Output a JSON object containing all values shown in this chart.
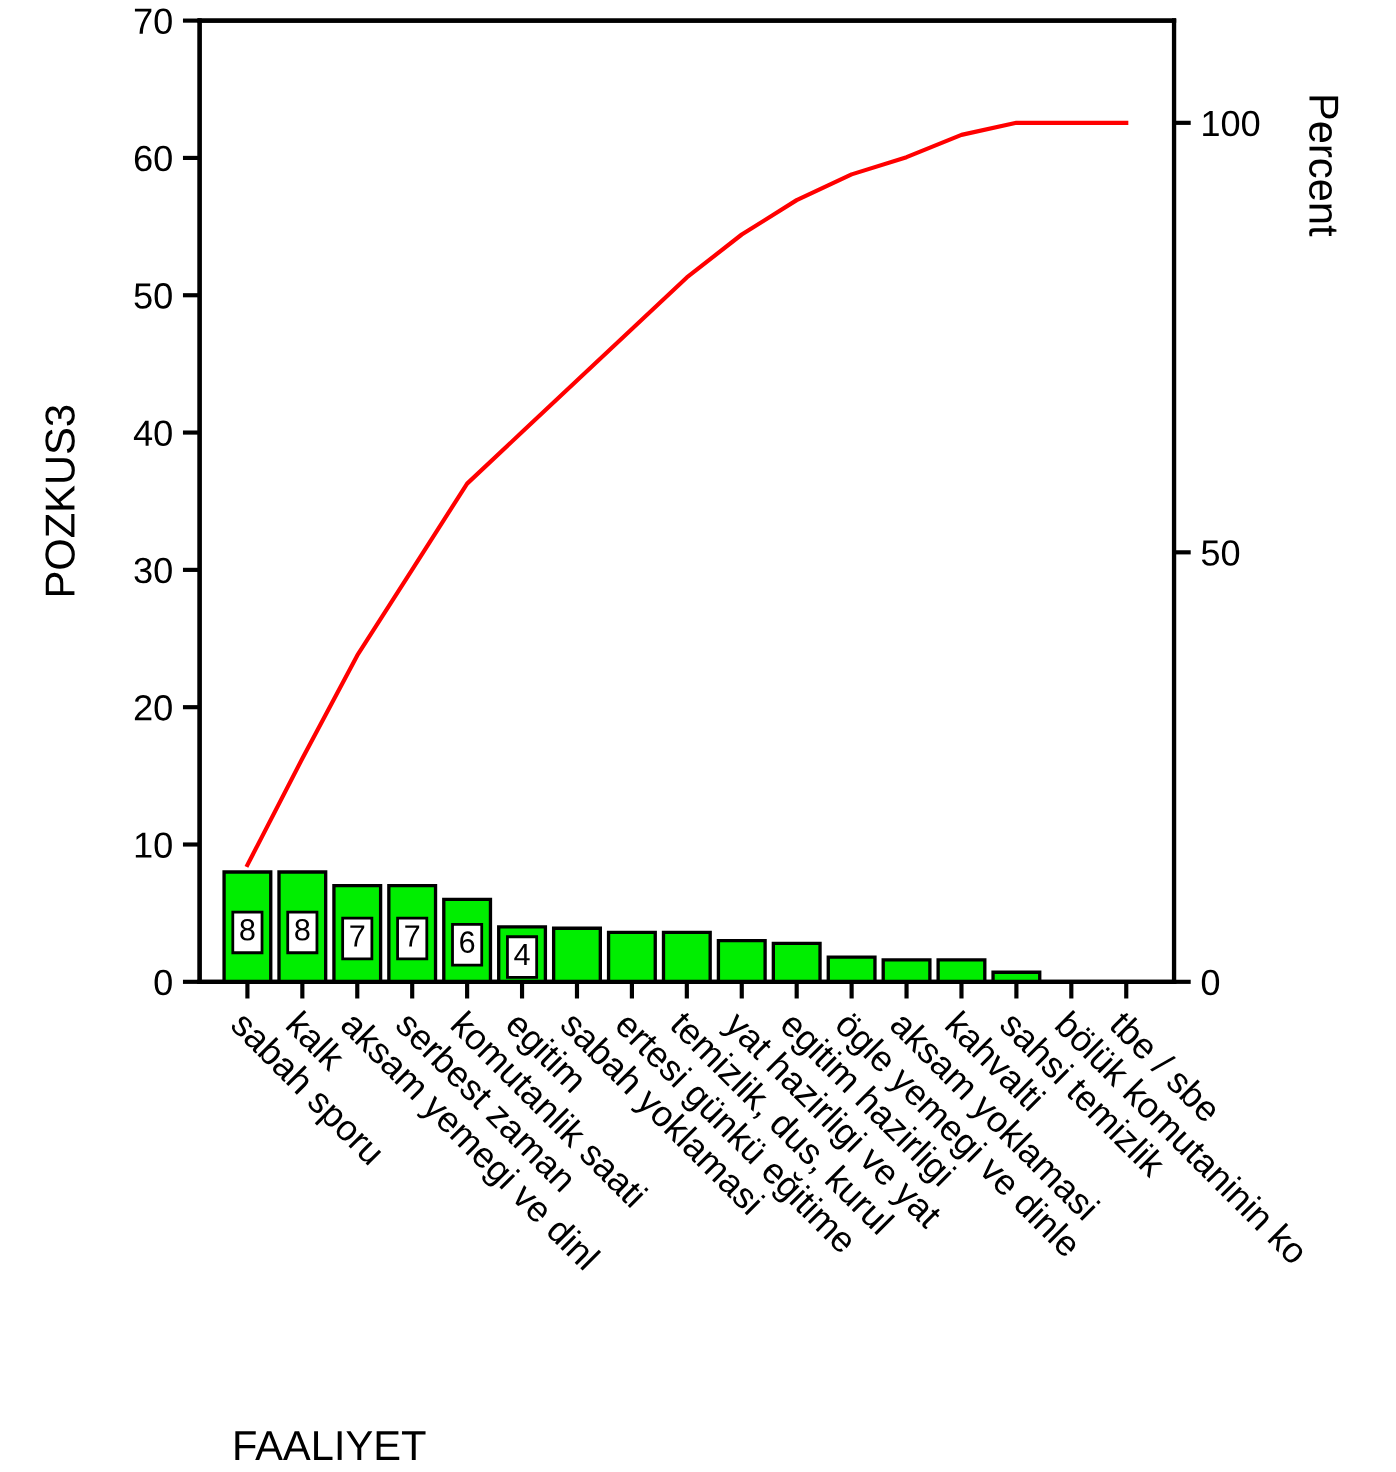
{
  "chart_data": {
    "type": "bar",
    "xlabel": "FAALIYET",
    "ylabel": "POZKUS3",
    "y2label": "Percent",
    "categories": [
      "sabah sporu",
      "kalk",
      "aksam yemegi ve dinl",
      "serbest zaman",
      "komutanlik saati",
      "egitim",
      "sabah yoklamasi",
      "ertesi günkü eğitime",
      "temizlik, dus, kurul",
      "yat hazirligi ve yat",
      "egitim hazirligi",
      "ögle yemegi ve dinle",
      "aksam yoklamasi",
      "kahvalti",
      "sahsi temizlik",
      "bölük komutaninin ko",
      "tbe / sbe"
    ],
    "series": [
      {
        "color": "#00ee00",
        "values": [
          8,
          8,
          7,
          7,
          6,
          4,
          3.9,
          3.6,
          3.6,
          3,
          2.8,
          1.8,
          1.6,
          1.6,
          0.7,
          0,
          0
        ],
        "value_labels": [
          "8",
          "8",
          "7",
          "7",
          "6",
          "4",
          null,
          null,
          null,
          null,
          null,
          null,
          null,
          null,
          null,
          null,
          null
        ]
      },
      {
        "type": "line",
        "axis": "y2",
        "color": "#ff0000",
        "values": [
          13.6,
          26,
          38,
          48,
          58,
          64,
          70,
          76,
          82,
          87,
          91,
          94,
          96,
          98.6,
          100,
          100,
          100
        ]
      }
    ],
    "ylim": [
      0,
      70
    ],
    "yticks": [
      0,
      10,
      20,
      30,
      40,
      50,
      60,
      70
    ],
    "y2lim": [
      0,
      111.9
    ],
    "y2ticks": [
      0,
      50,
      100
    ],
    "grid": false,
    "legend": false,
    "marker": "none",
    "line_style": "solid"
  }
}
